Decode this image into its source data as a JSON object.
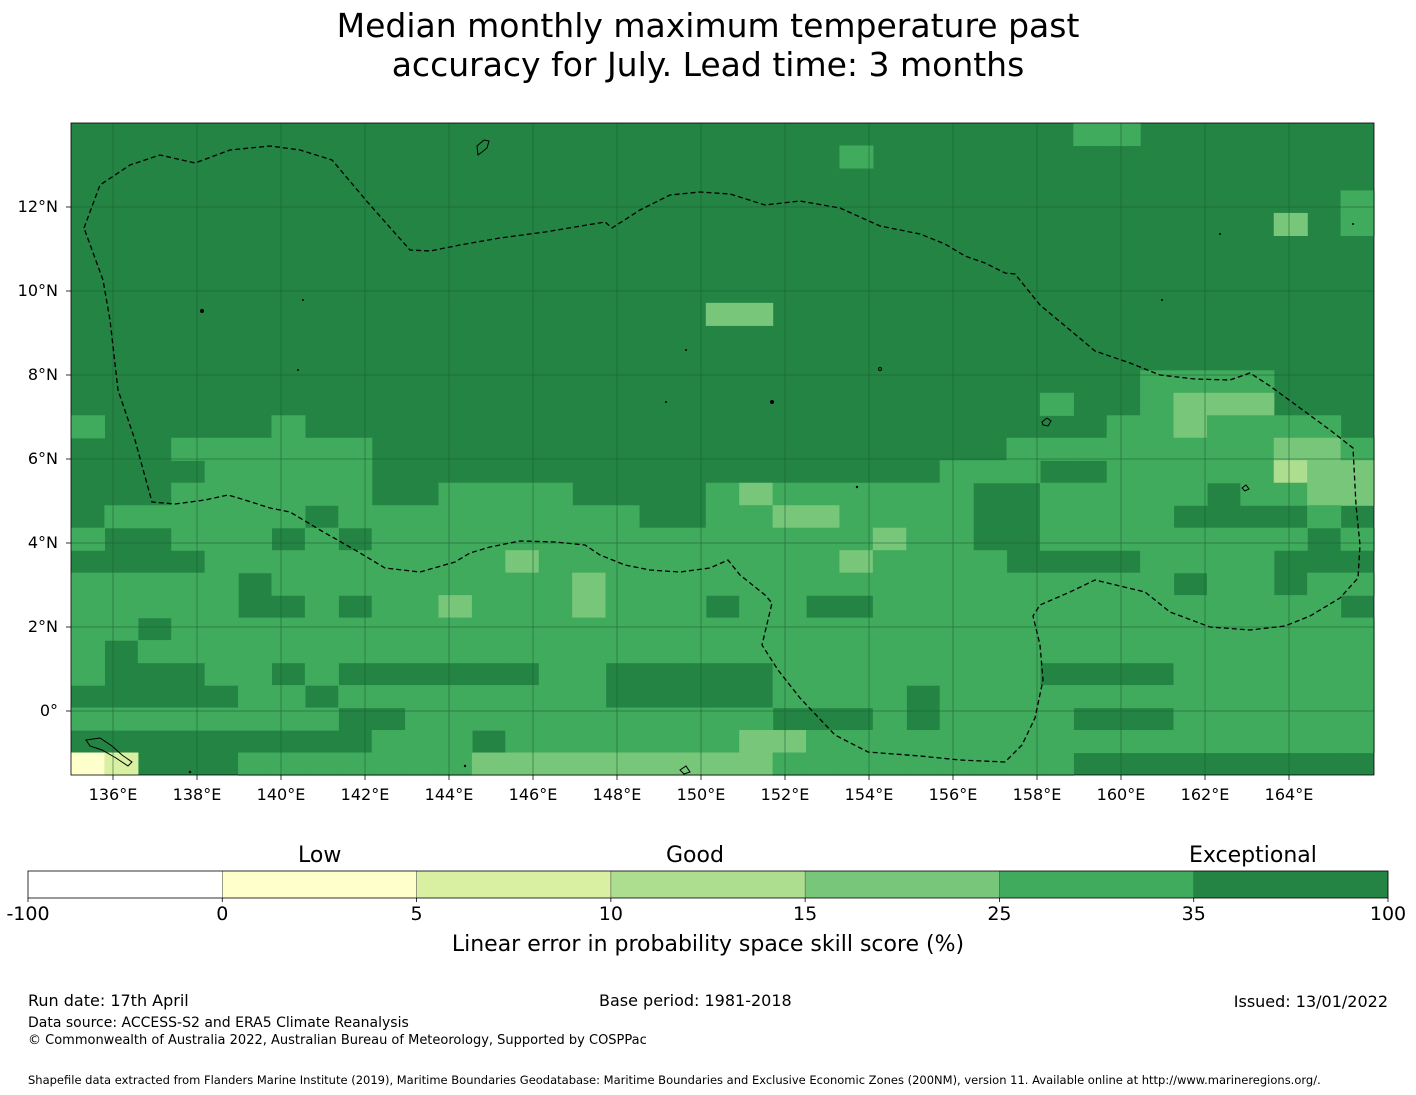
{
  "title_line1": "Median monthly maximum temperature past",
  "title_line2": "accuracy for July. Lead time: 3 months",
  "map": {
    "lon_ticks": [
      "136°E",
      "138°E",
      "140°E",
      "142°E",
      "144°E",
      "146°E",
      "148°E",
      "150°E",
      "152°E",
      "154°E",
      "156°E",
      "158°E",
      "160°E",
      "162°E",
      "164°E"
    ],
    "lat_ticks": [
      "12°N",
      "10°N",
      "8°N",
      "6°N",
      "4°N",
      "2°N",
      "0°"
    ],
    "background_color": "#238443",
    "grid_rows": [
      "000000000000000000000000000000110000000",
      "000000000000000000000001000000000000000",
      "000000000000000000000000000000000000000",
      "000000000000000000000000000000000000001",
      "000000000000000000000000000000000000201",
      "000000000000000000000000000000000000000",
      "000000000000000000000000000000000000000",
      "000000000000000000000000000000000000000",
      "000000000000000000022000000000000000000",
      "000000000000000000000000000000000000000",
      "000000000000000000000000000000000000000",
      "000000000000000000000000000000001111000",
      "000000000000000000000000000001001222000",
      "100000100000000000000000000000011211110",
      "000111111000000000000000000011111111221",
      "000011111000000000000000001110011111322",
      "000111111001111000012111111001111101122",
      "011111101111111110011221111001111000010",
      "100111010111111111111111211001111111101",
      "000011111111121111111112111100001111000",
      "111110111111111211111111111111111011011",
      "111110010112111211101100111111111111110",
      "110111111111111111111111111111111111111",
      "101111111111111111111111111111111111111",
      "100011010000001100000111111110000111111",
      "000001101111111100000111101111111111111",
      "111111110011111111111000101111000111111",
      "000000000111011111112211111111111111111",
      "540001111111222222222111111111000000000"
    ],
    "grid_colors": [
      "#238443",
      "#41ab5d",
      "#78c679",
      "#addd8e",
      "#d9f0a3",
      "#ffffcc"
    ]
  },
  "colorbar": {
    "categories": [
      "Low",
      "Good",
      "Exceptional"
    ],
    "ticks": [
      "-100",
      "0",
      "5",
      "10",
      "15",
      "25",
      "35",
      "100"
    ],
    "colors": [
      "#ffffff",
      "#ffffcc",
      "#d9f0a3",
      "#addd8e",
      "#78c679",
      "#41ab5d",
      "#238443"
    ],
    "label": "Linear error in probability space skill score (%)"
  },
  "footer": {
    "run_date": "Run date: 17th April",
    "base_period": "Base period: 1981-2018",
    "issued": "Issued: 13/01/2022",
    "data_source": "Data source: ACCESS-S2 and ERA5 Climate Reanalysis",
    "copyright": "© Commonwealth of Australia 2022, Australian Bureau of Meteorology, Supported by COSPPac",
    "shapefile": "Shapefile data extracted from Flanders Marine Institute (2019), Maritime Boundaries Geodatabase: Maritime Boundaries and Exclusive Economic Zones (200NM), version 11. Available online at http://www.marineregions.org/."
  }
}
